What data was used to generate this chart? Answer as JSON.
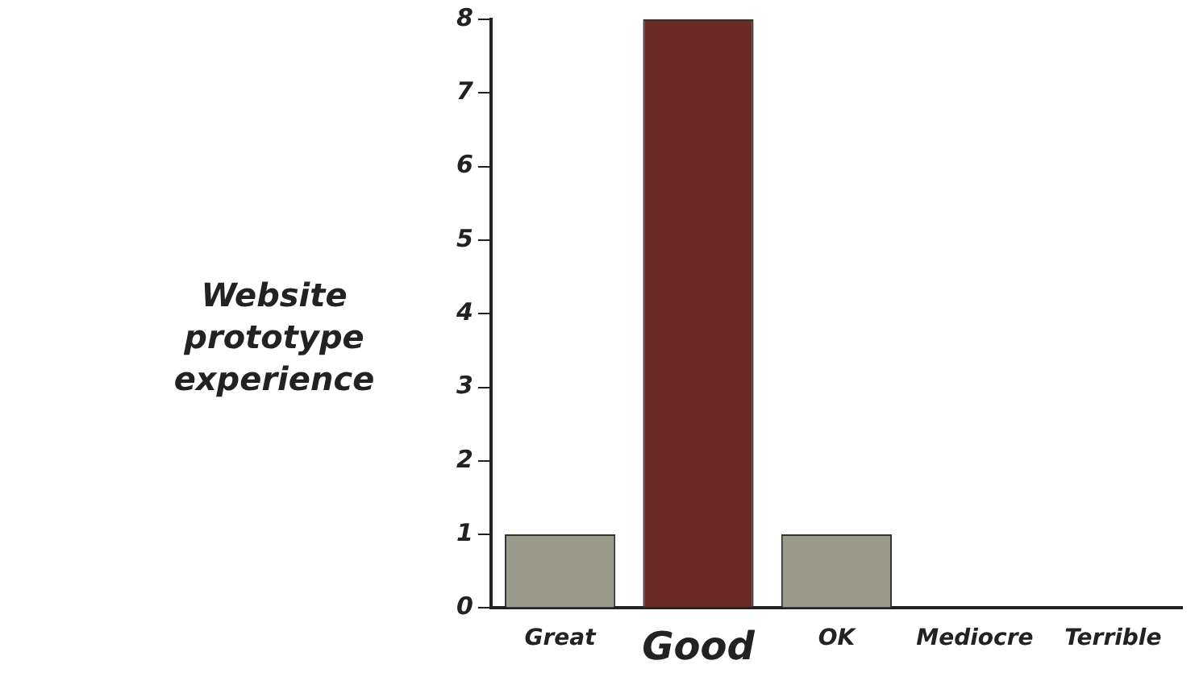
{
  "chart_data": {
    "type": "bar",
    "title": "Website prototype experience",
    "categories": [
      "Great",
      "Good",
      "OK",
      "Mediocre",
      "Terrible"
    ],
    "values": [
      1,
      8,
      1,
      0,
      0
    ],
    "colors": [
      "#9b9b8b",
      "#6b2a25",
      "#9b9b8b",
      "#9b9b8b",
      "#9b9b8b"
    ],
    "ylim": [
      0,
      8
    ],
    "yticks": [
      0,
      1,
      2,
      3,
      4,
      5,
      6,
      7,
      8
    ],
    "grid": false,
    "legend": false
  }
}
